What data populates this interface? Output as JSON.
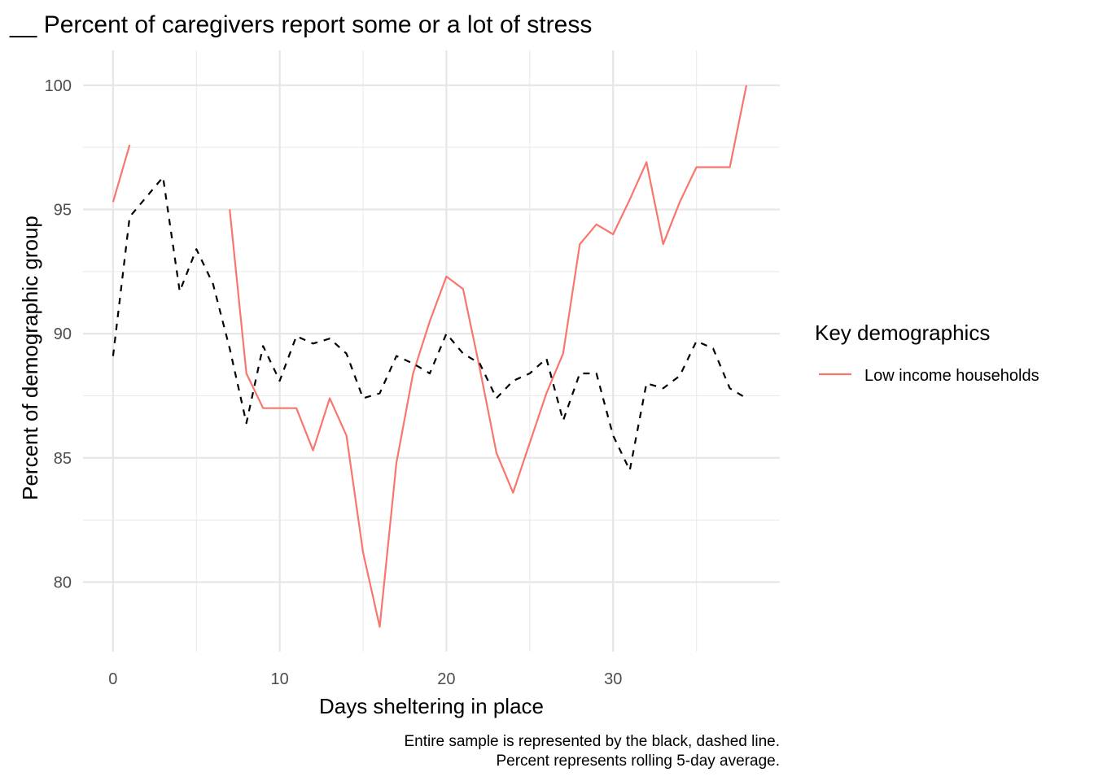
{
  "chart_data": {
    "type": "line",
    "title": "__ Percent of caregivers report some or a lot of stress",
    "xlabel": "Days sheltering in place",
    "ylabel": "Percent of demographic group",
    "caption_lines": [
      "Entire sample is represented by the black, dashed line.",
      "Percent represents rolling 5-day average."
    ],
    "xlim": [
      -1.8,
      40
    ],
    "ylim": [
      77.2,
      101.4
    ],
    "x_ticks": [
      0,
      10,
      20,
      30
    ],
    "y_ticks": [
      80,
      85,
      90,
      95,
      100
    ],
    "x_minor": [
      5,
      15,
      25,
      35
    ],
    "y_minor": [
      82.5,
      87.5,
      92.5,
      97.5
    ],
    "grid": true,
    "legend": {
      "title": "Key demographics",
      "position": "right"
    },
    "series": [
      {
        "name": "Low income households",
        "color": "#F8766D",
        "dashed": false,
        "x": [
          0,
          1,
          2,
          3,
          4,
          5,
          6,
          7,
          8,
          9,
          10,
          11,
          12,
          13,
          14,
          15,
          16,
          17,
          18,
          19,
          20,
          21,
          22,
          23,
          24,
          25,
          26,
          27,
          28,
          29,
          30,
          31,
          32,
          33,
          34,
          35,
          36,
          37,
          38
        ],
        "y": [
          95.3,
          97.6,
          null,
          null,
          null,
          null,
          null,
          95.0,
          88.4,
          87.0,
          87.0,
          87.0,
          85.3,
          87.4,
          85.9,
          81.2,
          78.2,
          84.8,
          88.4,
          90.5,
          92.3,
          91.8,
          88.6,
          85.2,
          83.6,
          85.6,
          87.6,
          89.2,
          93.6,
          94.4,
          94.0,
          95.4,
          96.9,
          93.6,
          95.3,
          96.7,
          96.7,
          96.7,
          100.0
        ]
      },
      {
        "name": "",
        "color": "#000000",
        "dashed": true,
        "x": [
          0,
          1,
          2,
          3,
          4,
          5,
          6,
          7,
          8,
          9,
          10,
          11,
          12,
          13,
          14,
          15,
          16,
          17,
          18,
          19,
          20,
          21,
          22,
          23,
          24,
          25,
          26,
          27,
          28,
          29,
          30,
          31,
          32,
          33,
          34,
          35,
          36,
          37,
          38
        ],
        "y": [
          89.1,
          94.7,
          95.5,
          96.3,
          91.7,
          93.4,
          92.0,
          89.4,
          86.4,
          89.5,
          88.1,
          89.9,
          89.6,
          89.8,
          89.2,
          87.4,
          87.6,
          89.1,
          88.8,
          88.4,
          90.0,
          89.2,
          88.8,
          87.4,
          88.1,
          88.4,
          89.0,
          86.5,
          88.4,
          88.4,
          85.9,
          84.5,
          88.0,
          87.8,
          88.3,
          89.7,
          89.4,
          87.8,
          87.4
        ]
      }
    ]
  }
}
